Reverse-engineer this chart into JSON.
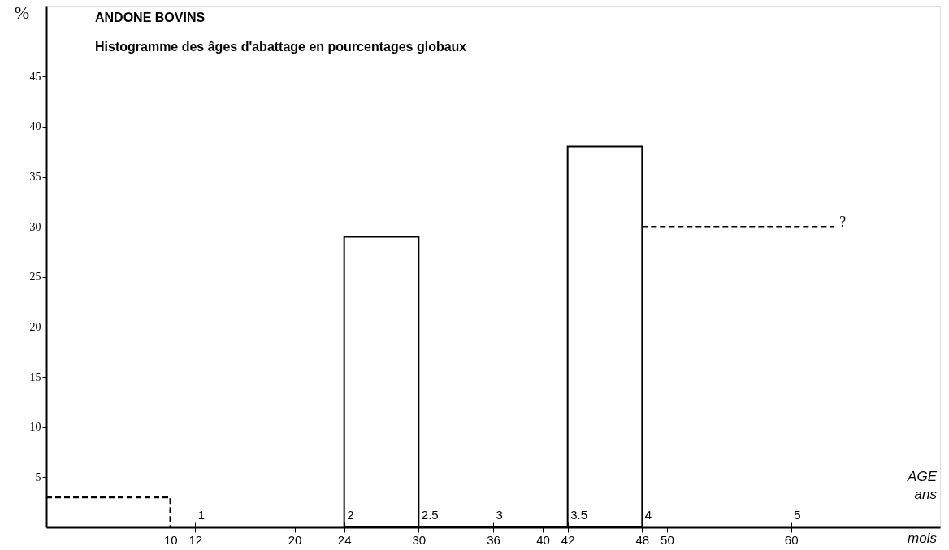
{
  "chart_data": {
    "type": "histogram",
    "title": "ANDONE      BOVINS",
    "subtitle": "Histogramme des âges d'abattage  en pourcentages globaux",
    "ylabel": "%",
    "xlabel": "mois",
    "x2label": "AGE ans",
    "series": [
      {
        "color": "#000000",
        "bins": [
          24,
          30,
          42,
          48
        ],
        "values": [
          29,
          0,
          38
        ]
      },
      {
        "type": "line",
        "color": "#000000",
        "line_style": "dashed",
        "x": [
          0,
          10,
          10
        ],
        "values": [
          3,
          3,
          0
        ]
      },
      {
        "type": "line",
        "color": "#000000",
        "line_style": "dashed",
        "x": [
          48,
          63.5
        ],
        "values": [
          30,
          30
        ]
      }
    ],
    "annotations": [
      "?"
    ],
    "xlim": [
      0,
      72
    ],
    "xticks": [
      10,
      12,
      20,
      24,
      30,
      36,
      40,
      42,
      48,
      50,
      60
    ],
    "x2lim": [
      0,
      6
    ],
    "x2ticks": [
      1,
      2,
      2.5,
      3,
      3.5,
      4,
      5
    ],
    "ylim": [
      0,
      52
    ],
    "yticks": [
      5,
      10,
      15,
      20,
      25,
      30,
      35,
      40,
      45
    ],
    "grid": false
  }
}
